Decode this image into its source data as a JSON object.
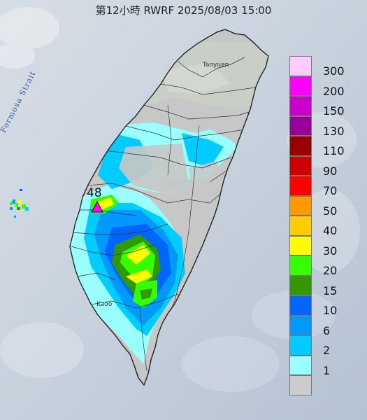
{
  "header": {
    "title": "第12小時  RWRF 2025/08/03 15:00"
  },
  "map": {
    "strait_label": "Formosa Strait",
    "place_labels": [
      "Taoyuan",
      "Kaoo"
    ],
    "max_value_label": "48",
    "max_marker_icon": "max-triangle-icon"
  },
  "legend": {
    "entries": [
      {
        "label": "300",
        "color": "#ffccff"
      },
      {
        "label": "200",
        "color": "#ff00ff"
      },
      {
        "label": "150",
        "color": "#cc00cc"
      },
      {
        "label": "130",
        "color": "#990099"
      },
      {
        "label": "110",
        "color": "#990000"
      },
      {
        "label": "90",
        "color": "#cc0000"
      },
      {
        "label": "70",
        "color": "#ff0000"
      },
      {
        "label": "50",
        "color": "#ff9900"
      },
      {
        "label": "40",
        "color": "#ffcc00"
      },
      {
        "label": "30",
        "color": "#ffff00"
      },
      {
        "label": "20",
        "color": "#33ff00"
      },
      {
        "label": "15",
        "color": "#339900"
      },
      {
        "label": "10",
        "color": "#0066ff"
      },
      {
        "label": "6",
        "color": "#0099ff"
      },
      {
        "label": "2",
        "color": "#00ccff"
      },
      {
        "label": "1",
        "color": "#99ffff"
      },
      {
        "label": "",
        "color": "#cccccc"
      }
    ]
  }
}
